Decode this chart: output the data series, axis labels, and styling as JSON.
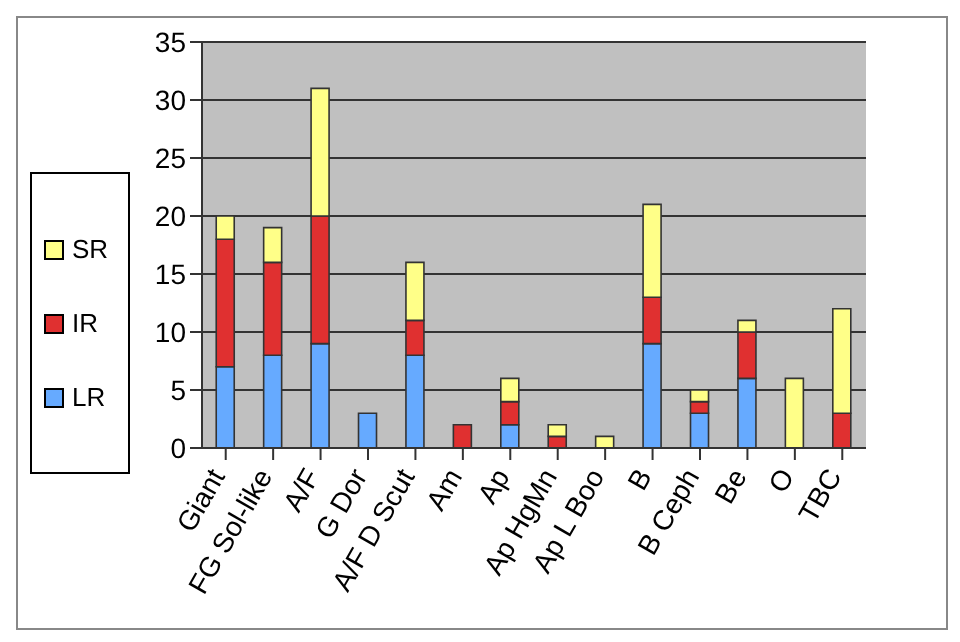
{
  "chart_data": {
    "type": "bar",
    "stacked": true,
    "categories": [
      "Giant",
      "FG Sol-like",
      "A/F",
      "G Dor",
      "A/F D Scut",
      "Am",
      "Ap",
      "Ap HgMn",
      "Ap L Boo",
      "B",
      "B Ceph",
      "Be",
      "O",
      "TBC"
    ],
    "series": [
      {
        "name": "LR",
        "color": "#66aaff",
        "values": [
          7,
          8,
          9,
          3,
          8,
          0,
          2,
          0,
          0,
          9,
          3,
          6,
          0,
          0
        ]
      },
      {
        "name": "IR",
        "color": "#e03030",
        "values": [
          11,
          8,
          11,
          0,
          3,
          2,
          2,
          1,
          0,
          4,
          1,
          4,
          0,
          3
        ]
      },
      {
        "name": "SR",
        "color": "#ffff88",
        "values": [
          2,
          3,
          11,
          0,
          5,
          0,
          2,
          1,
          1,
          8,
          1,
          1,
          6,
          9
        ]
      }
    ],
    "ylim": [
      0,
      35
    ],
    "yticks": [
      0,
      5,
      10,
      15,
      20,
      25,
      30,
      35
    ],
    "grid": "y",
    "legend": "left"
  }
}
